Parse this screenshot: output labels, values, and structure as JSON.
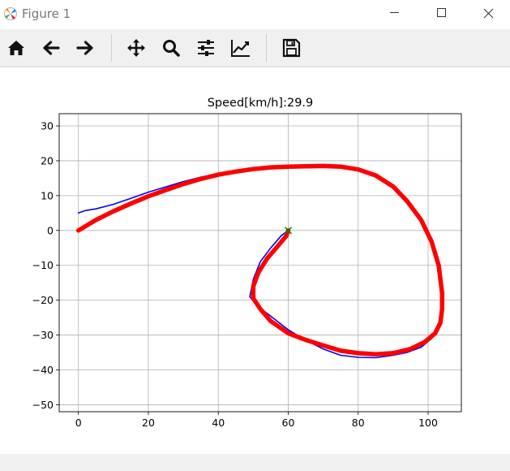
{
  "window": {
    "title": "Figure 1",
    "icons": {
      "app": "matplotlib-logo-icon",
      "minimize": "minimize-icon",
      "maximize": "maximize-icon",
      "close": "close-icon"
    }
  },
  "toolbar": {
    "buttons": [
      {
        "name": "home",
        "icon": "home-icon"
      },
      {
        "name": "back",
        "icon": "arrow-left-icon"
      },
      {
        "name": "forward",
        "icon": "arrow-right-icon"
      },
      {
        "name": "pan",
        "icon": "move-icon"
      },
      {
        "name": "zoom",
        "icon": "magnifier-icon"
      },
      {
        "name": "configure-subplots",
        "icon": "sliders-icon"
      },
      {
        "name": "edit-axis",
        "icon": "line-chart-icon"
      },
      {
        "name": "save",
        "icon": "floppy-disk-icon"
      }
    ]
  },
  "chart_data": {
    "type": "line",
    "title": "Speed[km/h]:29.9",
    "xlabel": "",
    "ylabel": "",
    "xlim": [
      -5.5,
      109.5
    ],
    "ylim": [
      -52,
      33.5
    ],
    "xticks": [
      0,
      20,
      40,
      60,
      80,
      100
    ],
    "yticks": [
      -50,
      -40,
      -30,
      -20,
      -10,
      0,
      10,
      20,
      30
    ],
    "xtick_labels": [
      "0",
      "20",
      "40",
      "60",
      "80",
      "100"
    ],
    "ytick_labels": [
      "−50",
      "−40",
      "−30",
      "−20",
      "−10",
      "0",
      "10",
      "20",
      "30"
    ],
    "grid": true,
    "series": [
      {
        "color": "#0000ff",
        "width": 1.6,
        "x": [
          0,
          2,
          5,
          10,
          15,
          20,
          25,
          30,
          35,
          40,
          45,
          50,
          55,
          60,
          65,
          70,
          75,
          80,
          85,
          90,
          94,
          98,
          101,
          103,
          104,
          104,
          103,
          101,
          98,
          94,
          90,
          85,
          80,
          75,
          70,
          65,
          60,
          55,
          51,
          49,
          50,
          52,
          55,
          58,
          60
        ],
        "y": [
          5,
          5.7,
          6.2,
          7.5,
          9.2,
          11,
          12.5,
          14,
          15.3,
          16.2,
          17,
          17.6,
          18,
          18.2,
          18.4,
          18.5,
          18.2,
          17.4,
          15.5,
          12.5,
          8.3,
          3.2,
          -3,
          -10,
          -18,
          -24,
          -28.5,
          -31,
          -33.5,
          -35,
          -35.8,
          -36.5,
          -36.4,
          -35.8,
          -34,
          -31.5,
          -28.5,
          -24.6,
          -21.5,
          -19,
          -14,
          -9,
          -5,
          -1.5,
          0
        ]
      },
      {
        "color": "#ff0000",
        "width": 5.5,
        "x": [
          0,
          5,
          10,
          15,
          20,
          25,
          30,
          35,
          40,
          45,
          50,
          55,
          60,
          65,
          70,
          75,
          80,
          85,
          90,
          94,
          98,
          101,
          103,
          104,
          104,
          103.5,
          102,
          99,
          95,
          90,
          85,
          80,
          75,
          70,
          65,
          60,
          55,
          52,
          50,
          50,
          51.5,
          54,
          57,
          59.5,
          60
        ],
        "y": [
          0,
          3,
          5.5,
          7.7,
          9.8,
          11.6,
          13.3,
          14.8,
          16,
          16.9,
          17.6,
          18.1,
          18.3,
          18.4,
          18.5,
          18.3,
          17.5,
          15.8,
          12.6,
          8.4,
          3,
          -3.2,
          -10,
          -18,
          -22.5,
          -26.5,
          -29.5,
          -32,
          -34,
          -35.2,
          -35.5,
          -35.2,
          -34.5,
          -33,
          -31.4,
          -29.5,
          -26,
          -22.5,
          -19.5,
          -16,
          -12,
          -8,
          -4.5,
          -1.5,
          0
        ]
      }
    ],
    "marker": {
      "x": 60,
      "y": 0,
      "symbol": "x",
      "color": "#008000"
    }
  }
}
